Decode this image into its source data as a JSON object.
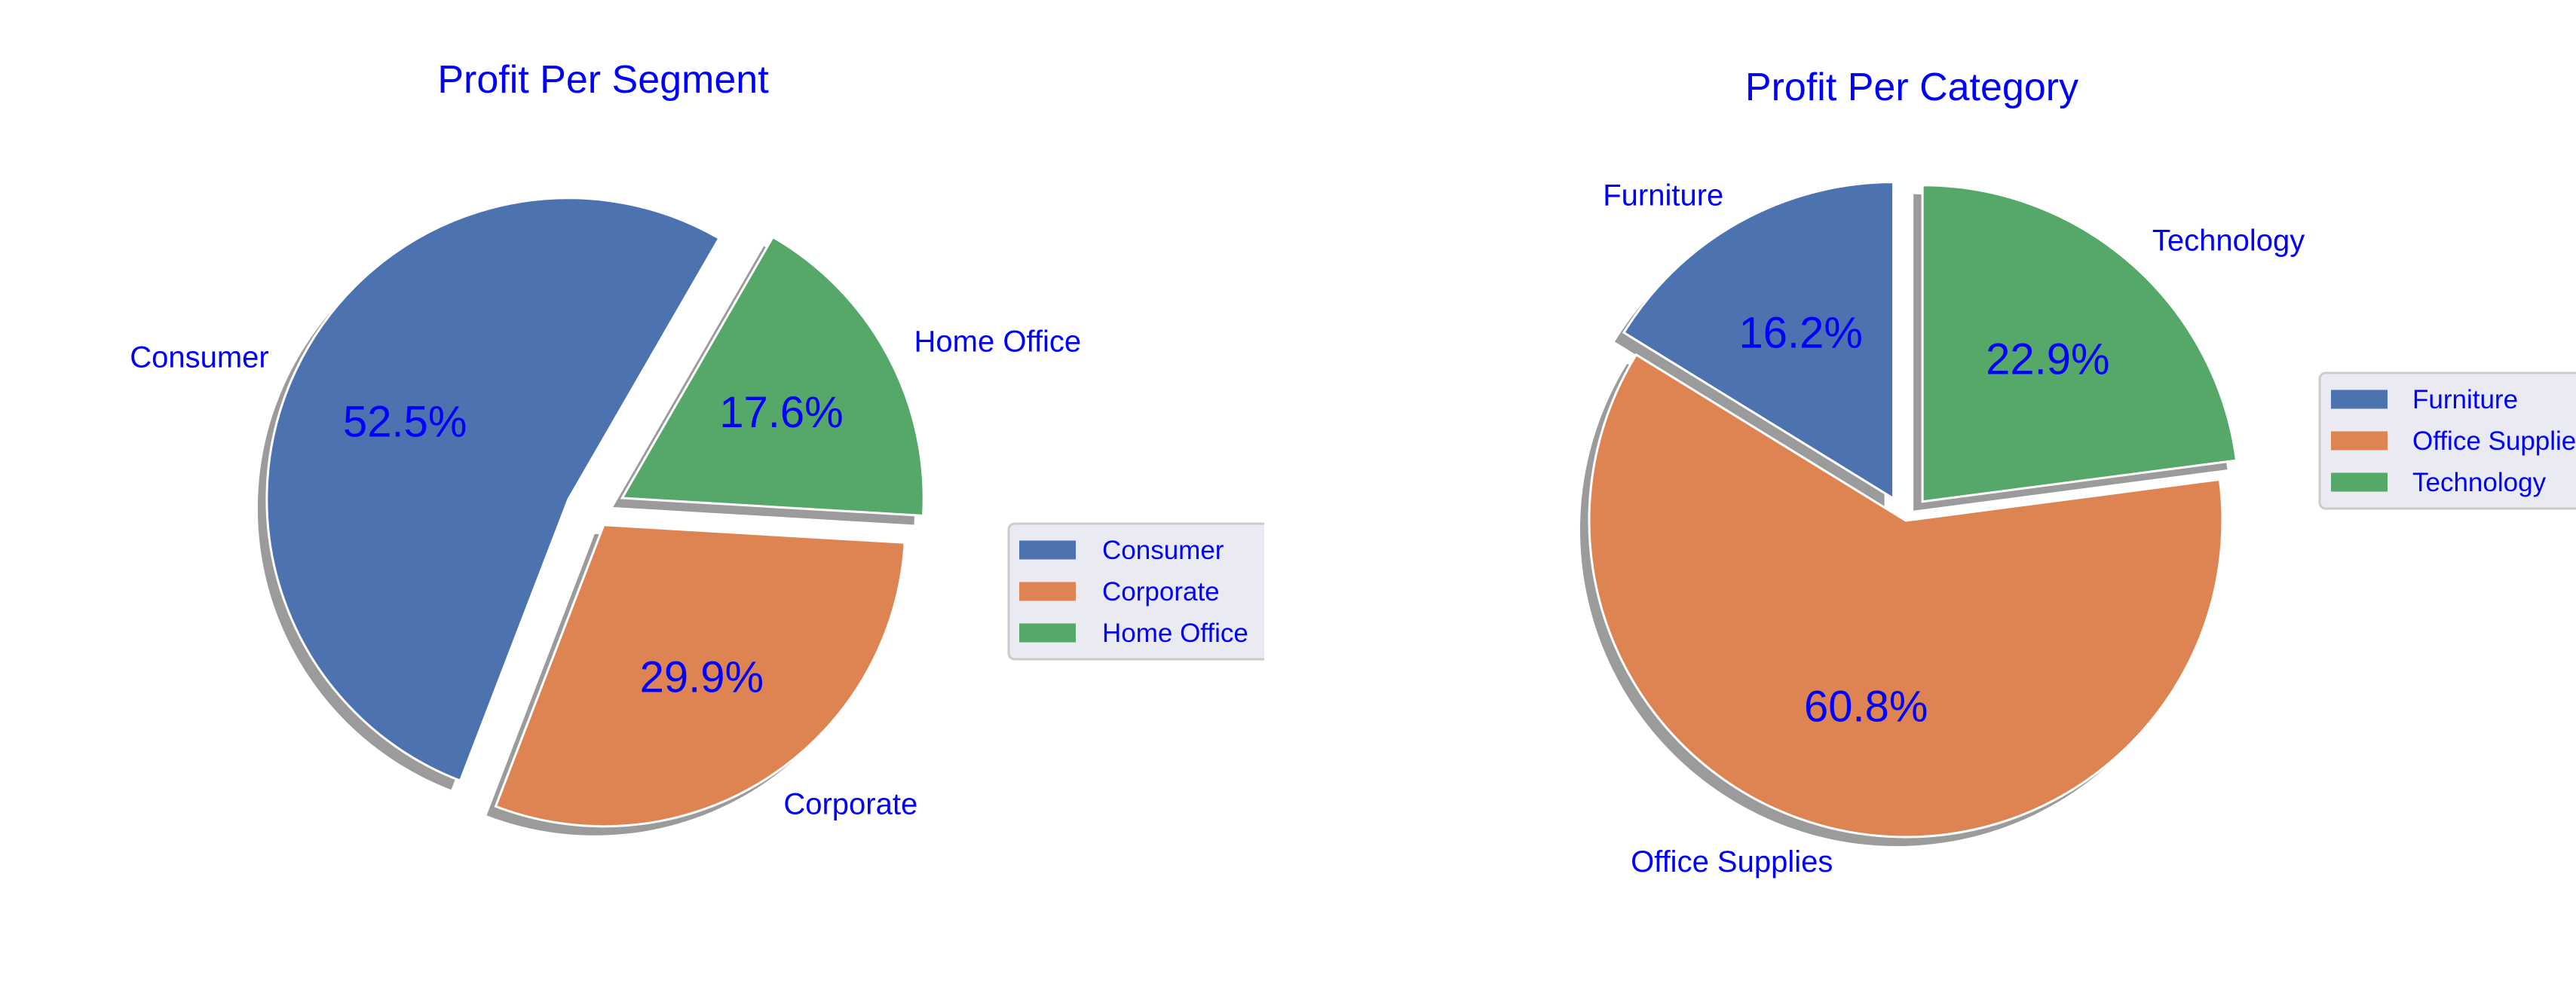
{
  "colors": {
    "text": "#0000ff",
    "blue": "#4c72b0",
    "orange": "#dd8452",
    "green": "#55a868",
    "shadow": "#7a7a7a",
    "legend_bg": "#eaeaf2",
    "legend_border": "#cccccc"
  },
  "chart_data": [
    {
      "type": "pie",
      "title": "Profit Per Segment",
      "labels": [
        "Consumer",
        "Corporate",
        "Home Office"
      ],
      "values": [
        52.5,
        29.9,
        17.6
      ],
      "pct_labels": [
        "52.5%",
        "29.9%",
        "17.6%"
      ],
      "colors": [
        "#4c72b0",
        "#dd8452",
        "#55a868"
      ],
      "explode": [
        0.1,
        0.05,
        0.1
      ],
      "start_angle_deg": 60,
      "shadow": true,
      "legend": {
        "entries": [
          "Consumer",
          "Corporate",
          "Home Office"
        ],
        "placement": "right"
      }
    },
    {
      "type": "pie",
      "title": "Profit Per Category",
      "labels": [
        "Furniture",
        "Office Supplies",
        "Technology"
      ],
      "values": [
        16.2,
        60.8,
        22.9
      ],
      "pct_labels": [
        "16.2%",
        "60.8%",
        "22.9%"
      ],
      "colors": [
        "#4c72b0",
        "#dd8452",
        "#55a868"
      ],
      "explode": [
        0.08,
        0.0,
        0.08
      ],
      "start_angle_deg": 90,
      "shadow": true,
      "legend": {
        "entries": [
          "Furniture",
          "Office Supplies",
          "Technology"
        ],
        "placement": "right"
      }
    }
  ]
}
